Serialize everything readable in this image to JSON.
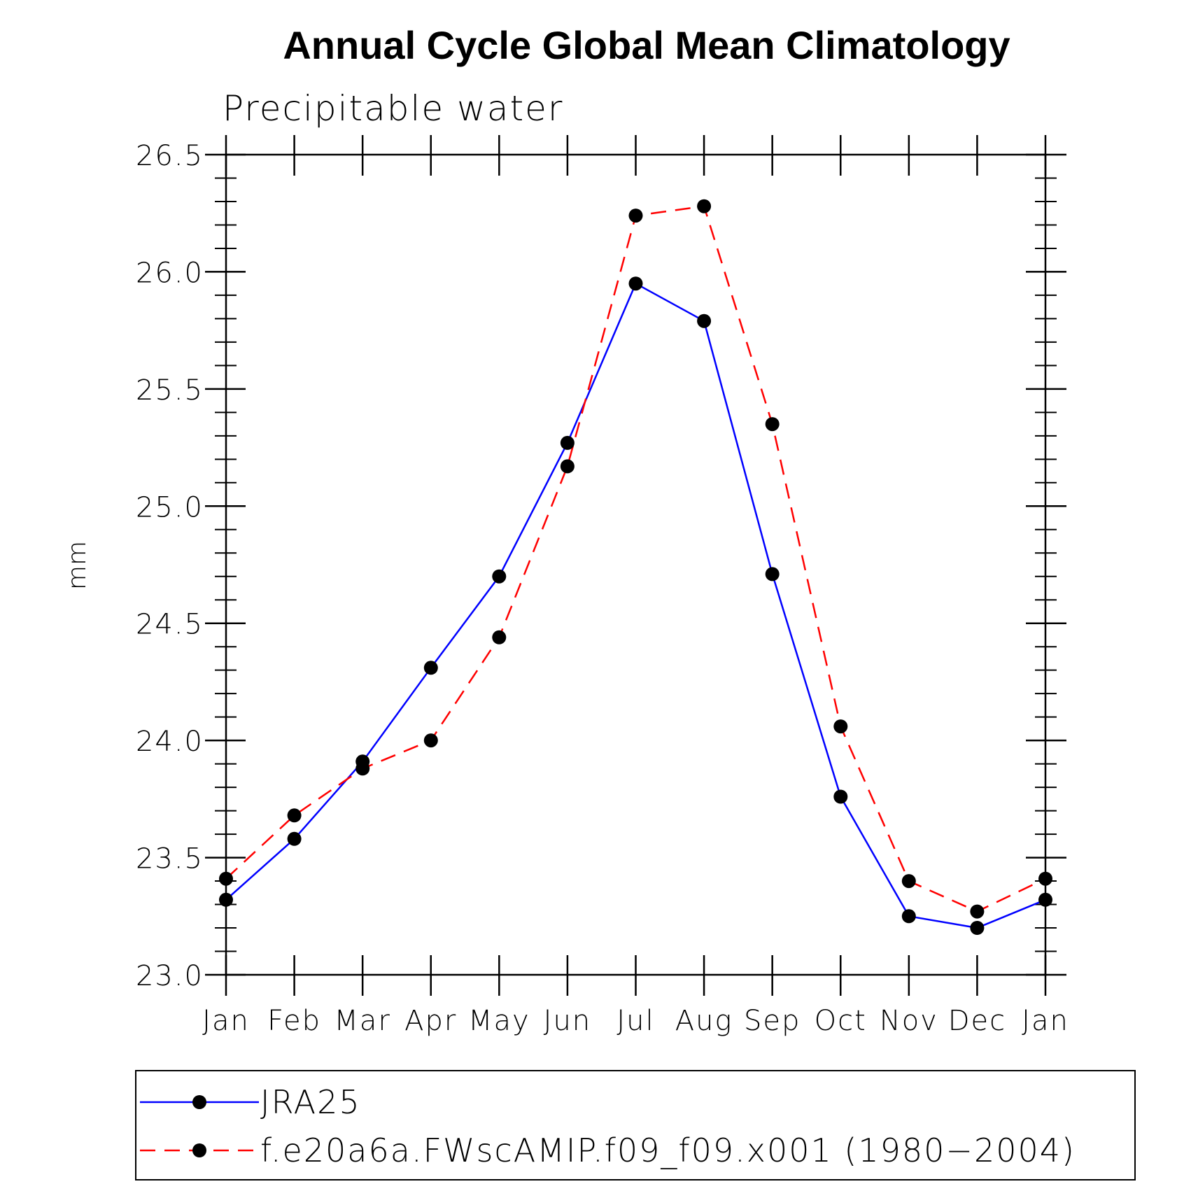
{
  "chart_data": {
    "type": "line",
    "title": "Annual Cycle Global Mean Climatology",
    "subtitle": "Precipitable water",
    "xlabel": "",
    "ylabel": "mm",
    "categories": [
      "Jan",
      "Feb",
      "Mar",
      "Apr",
      "May",
      "Jun",
      "Jul",
      "Aug",
      "Sep",
      "Oct",
      "Nov",
      "Dec",
      "Jan"
    ],
    "ylim": [
      23.0,
      26.5
    ],
    "yticks": [
      "23.0",
      "23.5",
      "24.0",
      "24.5",
      "25.0",
      "25.5",
      "26.0",
      "26.5"
    ],
    "yminor_step": 0.1,
    "grid": false,
    "legend_position": "bottom",
    "series": [
      {
        "name": "JRA25",
        "color": "#0000ff",
        "dash": "solid",
        "marker": "filled-circle",
        "values": [
          23.32,
          23.58,
          23.91,
          24.31,
          24.7,
          25.27,
          25.95,
          25.79,
          24.71,
          23.76,
          23.25,
          23.2,
          23.32
        ]
      },
      {
        "name": "f.e20a6a.FWscAMIP.f09_f09.x001 (1980−2004)",
        "color": "#ff0000",
        "dash": "dashed",
        "marker": "filled-circle",
        "values": [
          23.41,
          23.68,
          23.88,
          24.0,
          24.44,
          25.17,
          26.24,
          26.28,
          25.35,
          24.06,
          23.4,
          23.27,
          23.41
        ]
      }
    ]
  }
}
